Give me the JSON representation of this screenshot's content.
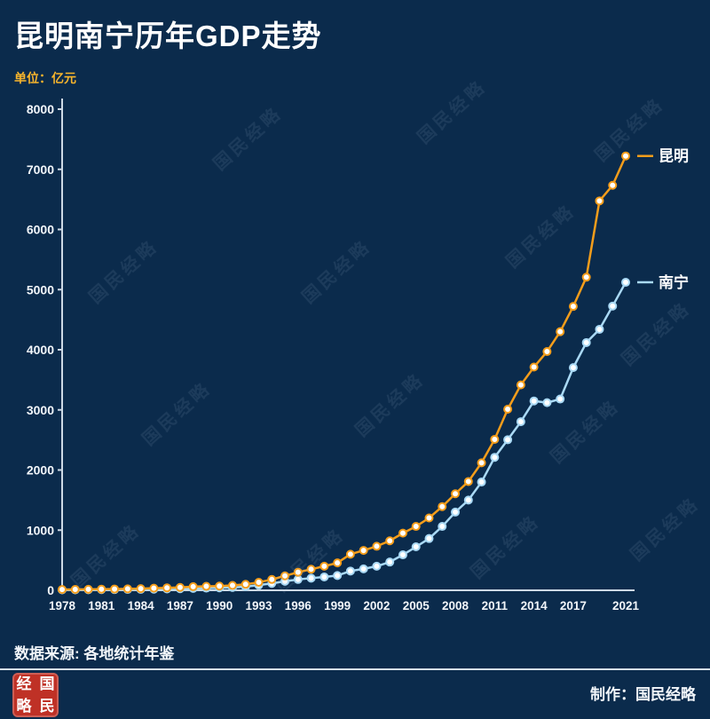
{
  "header": {
    "title": "昆明南宁历年GDP走势",
    "unit_label": "单位：亿元"
  },
  "watermark": {
    "text": "国民经略"
  },
  "chart_data": {
    "type": "line",
    "title": "昆明南宁历年GDP走势",
    "unit": "亿元",
    "ylim": [
      0,
      8000
    ],
    "yticks": [
      0,
      1000,
      2000,
      3000,
      4000,
      5000,
      6000,
      7000,
      8000
    ],
    "xticks": [
      1978,
      1981,
      1984,
      1987,
      1990,
      1993,
      1996,
      1999,
      2002,
      2005,
      2008,
      2011,
      2014,
      2017,
      2021
    ],
    "legend_position": "right-of-line-ends",
    "x": [
      1978,
      1979,
      1980,
      1981,
      1982,
      1983,
      1984,
      1985,
      1986,
      1987,
      1988,
      1989,
      1990,
      1991,
      1992,
      1993,
      1994,
      1995,
      1996,
      1997,
      1998,
      1999,
      2000,
      2001,
      2002,
      2003,
      2004,
      2005,
      2006,
      2007,
      2008,
      2009,
      2010,
      2011,
      2012,
      2013,
      2014,
      2015,
      2016,
      2017,
      2018,
      2019,
      2020,
      2021
    ],
    "series": [
      {
        "name": "昆明",
        "color": "#f49d1b",
        "values": [
          13,
          15,
          17,
          19,
          21,
          24,
          28,
          35,
          41,
          48,
          60,
          66,
          70,
          81,
          100,
          132,
          180,
          240,
          300,
          350,
          400,
          456,
          600,
          663,
          732,
          823,
          950,
          1062,
          1203,
          1392,
          1605,
          1809,
          2120,
          2510,
          3011,
          3415,
          3712,
          3970,
          4300,
          4721,
          5206,
          6475,
          6734,
          7222
        ]
      },
      {
        "name": "南宁",
        "color": "#a9d9f5",
        "values": [
          7,
          8,
          9,
          11,
          12,
          14,
          16,
          19,
          22,
          26,
          32,
          36,
          41,
          47,
          60,
          86,
          115,
          150,
          180,
          202,
          222,
          245,
          320,
          356,
          400,
          470,
          590,
          723,
          861,
          1062,
          1300,
          1500,
          1800,
          2211,
          2503,
          2803,
          3148,
          3120,
          3180,
          3703,
          4119,
          4340,
          4726,
          5121
        ]
      }
    ]
  },
  "footer": {
    "source": "数据来源: 各地统计年鉴",
    "credit": "制作：国民经略",
    "seal_chars": [
      "经",
      "国",
      "略",
      "民"
    ]
  },
  "colors": {
    "background": "#0b2b4c",
    "accent_orange": "#f49d1b",
    "accent_blue": "#a9d9f5",
    "unit_text": "#f7b52c",
    "axis": "#cdd9e5",
    "seal_red": "#bf3126"
  }
}
